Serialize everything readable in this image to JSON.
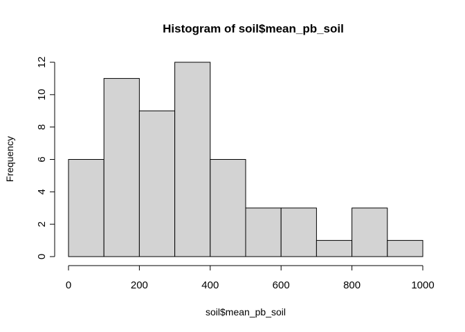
{
  "chart_data": {
    "type": "bar",
    "subtype": "histogram",
    "title": "Histogram of soil$mean_pb_soil",
    "xlabel": "soil$mean_pb_soil",
    "ylabel": "Frequency",
    "bins": [
      {
        "from": 0,
        "to": 100,
        "count": 6
      },
      {
        "from": 100,
        "to": 200,
        "count": 11
      },
      {
        "from": 200,
        "to": 300,
        "count": 9
      },
      {
        "from": 300,
        "to": 400,
        "count": 12
      },
      {
        "from": 400,
        "to": 500,
        "count": 6
      },
      {
        "from": 500,
        "to": 600,
        "count": 3
      },
      {
        "from": 600,
        "to": 700,
        "count": 3
      },
      {
        "from": 700,
        "to": 800,
        "count": 1
      },
      {
        "from": 800,
        "to": 900,
        "count": 3
      },
      {
        "from": 900,
        "to": 1000,
        "count": 1
      }
    ],
    "xlim": [
      0,
      1000
    ],
    "ylim": [
      0,
      12
    ],
    "xticks": [
      "0",
      "200",
      "400",
      "600",
      "800",
      "1000"
    ],
    "yticks": [
      "0",
      "2",
      "4",
      "6",
      "8",
      "10",
      "12"
    ],
    "bar_color": "#d3d3d3",
    "edge_color": "#000000",
    "grid": false
  }
}
